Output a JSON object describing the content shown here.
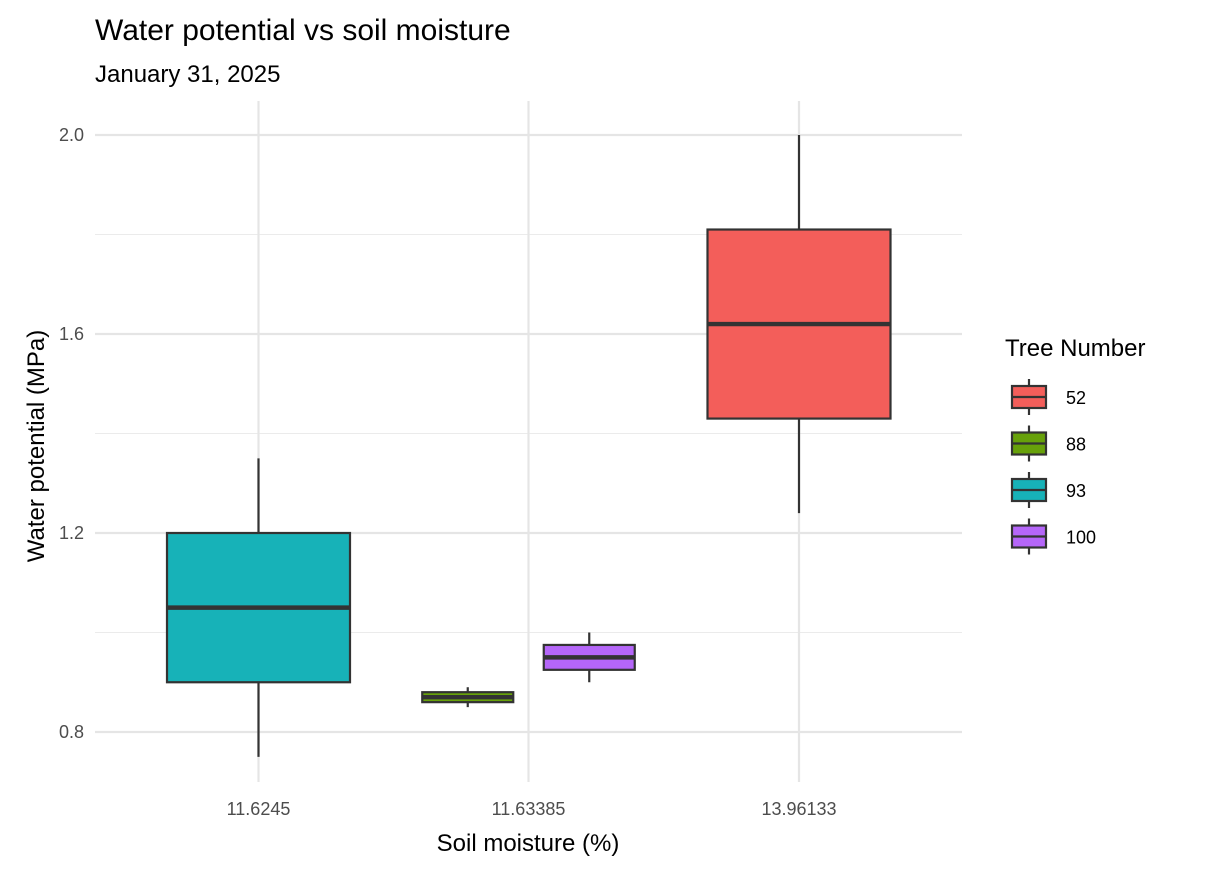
{
  "chart_data": {
    "type": "boxplot",
    "title": "Water potential vs soil moisture",
    "subtitle": "January 31, 2025",
    "xlabel": "Soil moisture (%)",
    "ylabel": "Water potential (MPa)",
    "categories": [
      "11.6245",
      "11.63385",
      "13.96133"
    ],
    "ylim": [
      0.7,
      2.07
    ],
    "yticks": [
      0.8,
      1.2,
      1.6,
      2.0
    ],
    "yticks_labels": [
      "0.8",
      "1.2",
      "1.6",
      "2.0"
    ],
    "grid": true,
    "legend": {
      "title": "Tree Number",
      "position": "right",
      "entries": [
        {
          "label": "52",
          "color": "#F35E5A"
        },
        {
          "label": "88",
          "color": "#67A10A"
        },
        {
          "label": "93",
          "color": "#17B2B8"
        },
        {
          "label": "100",
          "color": "#B566F9"
        }
      ]
    },
    "boxes": [
      {
        "category": "11.6245",
        "tree": "93",
        "min": 0.75,
        "q1": 0.9,
        "median": 1.05,
        "q3": 1.2,
        "max": 1.35
      },
      {
        "category": "11.63385",
        "tree": "88",
        "min": 0.85,
        "q1": 0.86,
        "median": 0.87,
        "q3": 0.88,
        "max": 0.89
      },
      {
        "category": "11.63385",
        "tree": "100",
        "min": 0.9,
        "q1": 0.925,
        "median": 0.95,
        "q3": 0.975,
        "max": 1.0
      },
      {
        "category": "13.96133",
        "tree": "52",
        "min": 1.24,
        "q1": 1.43,
        "median": 1.62,
        "q3": 1.81,
        "max": 2.0
      }
    ]
  }
}
